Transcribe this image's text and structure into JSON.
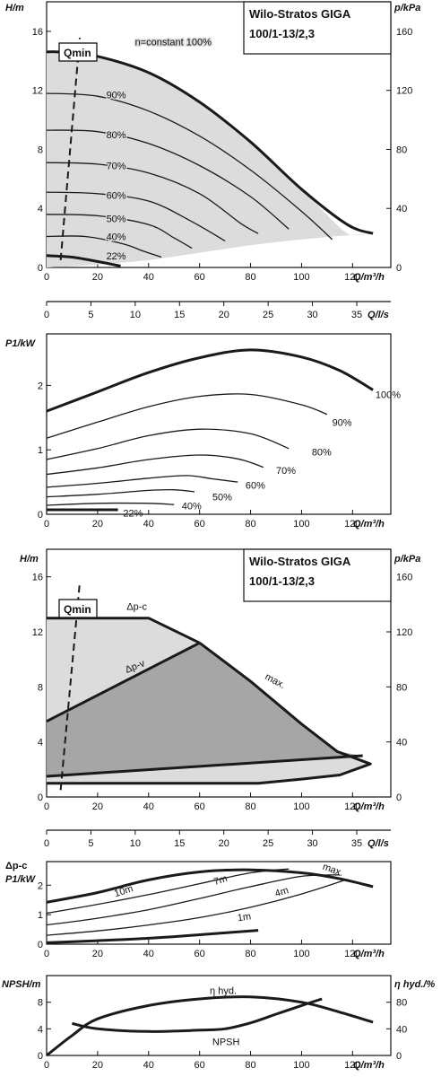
{
  "title_line1": "Wilo-Stratos GIGA",
  "title_line2": "100/1-13/2,3",
  "colors": {
    "line": "#1a1a1a",
    "fill_light": "#dcdcdc",
    "fill_dark": "#a6a6a6",
    "frame": "#111111"
  },
  "chart_data": [
    {
      "id": "hq_speed",
      "type": "line",
      "title": "Wilo-Stratos GIGA 100/1-13/2,3",
      "xlabel": "Q/m³/h",
      "ylabel": "H/m",
      "y2label": "p/kPa",
      "xlim": [
        0,
        135
      ],
      "ylim": [
        0,
        18
      ],
      "y2lim": [
        0,
        180
      ],
      "xticks": [
        "0",
        "20",
        "40",
        "60",
        "80",
        "100",
        "120"
      ],
      "yticks": [
        "0",
        "4",
        "8",
        "12",
        "16"
      ],
      "y2ticks": [
        "0",
        "40",
        "80",
        "120",
        "160"
      ],
      "qmin_label": "Qmin",
      "qmin_line": [
        [
          5.5,
          0.5
        ],
        [
          13,
          15.2
        ]
      ],
      "envelope": [
        [
          0,
          14.6
        ],
        [
          5,
          14.6
        ],
        [
          20,
          14.3
        ],
        [
          40,
          13.2
        ],
        [
          60,
          11.2
        ],
        [
          80,
          8.5
        ],
        [
          100,
          5.3
        ],
        [
          112,
          3.2
        ],
        [
          118,
          2.3
        ],
        [
          122,
          2.2
        ],
        [
          126,
          2.3
        ],
        [
          100,
          1.9
        ],
        [
          80,
          1.5
        ],
        [
          60,
          1.0
        ],
        [
          40,
          0.5
        ],
        [
          20,
          0.2
        ],
        [
          0,
          0
        ]
      ],
      "series": [
        {
          "name": "n=constant 100%",
          "bold": true,
          "x": [
            0,
            5,
            20,
            40,
            60,
            80,
            100,
            118,
            128
          ],
          "y": [
            14.6,
            14.6,
            14.3,
            13.2,
            11.2,
            8.5,
            5.3,
            2.9,
            2.3
          ]
        },
        {
          "name": "90%",
          "x": [
            0,
            20,
            40,
            60,
            80,
            100,
            112
          ],
          "y": [
            11.8,
            11.6,
            10.6,
            8.9,
            6.6,
            3.8,
            1.9
          ]
        },
        {
          "name": "80%",
          "x": [
            0,
            20,
            40,
            60,
            80,
            95
          ],
          "y": [
            9.3,
            9.2,
            8.4,
            6.9,
            4.8,
            2.6
          ]
        },
        {
          "name": "70%",
          "x": [
            0,
            20,
            40,
            60,
            76,
            83
          ],
          "y": [
            7.1,
            7.0,
            6.4,
            5.0,
            3.0,
            2.3
          ]
        },
        {
          "name": "60%",
          "x": [
            0,
            20,
            40,
            56,
            70
          ],
          "y": [
            5.1,
            5.0,
            4.5,
            3.2,
            1.8
          ]
        },
        {
          "name": "50%",
          "x": [
            0,
            20,
            40,
            50,
            57
          ],
          "y": [
            3.6,
            3.5,
            2.9,
            2.0,
            1.3
          ]
        },
        {
          "name": "40%",
          "x": [
            0,
            15,
            30,
            38,
            45
          ],
          "y": [
            2.1,
            2.1,
            1.6,
            1.1,
            0.7
          ]
        },
        {
          "name": "22%",
          "bold": true,
          "x": [
            0,
            10,
            20,
            29
          ],
          "y": [
            0.8,
            0.7,
            0.4,
            0.1
          ]
        }
      ],
      "curve_labels": [
        {
          "text": "n=constant 100%",
          "x": 22,
          "y": 15.3
        },
        {
          "text": "90%",
          "x": 22,
          "y": 11.7
        },
        {
          "text": "80%",
          "x": 22,
          "y": 9.0
        },
        {
          "text": "70%",
          "x": 22,
          "y": 6.9
        },
        {
          "text": "60%",
          "x": 22,
          "y": 4.9
        },
        {
          "text": "50%",
          "x": 22,
          "y": 3.3
        },
        {
          "text": "40%",
          "x": 22,
          "y": 2.1
        },
        {
          "text": "22%",
          "x": 22,
          "y": 0.8
        }
      ]
    },
    {
      "id": "ls_axis1",
      "type": "axis",
      "xlabel": "Q/l/s",
      "xlim": [
        0,
        37.5
      ],
      "xticks": [
        "0",
        "5",
        "10",
        "15",
        "20",
        "25",
        "30",
        "35"
      ]
    },
    {
      "id": "power",
      "type": "line",
      "xlabel": "Q/m³/h",
      "ylabel": "P1/kW",
      "xlim": [
        0,
        135
      ],
      "ylim": [
        0,
        2.8
      ],
      "xticks": [
        "0",
        "20",
        "40",
        "60",
        "80",
        "100",
        "120"
      ],
      "yticks": [
        "0",
        "1",
        "2"
      ],
      "series": [
        {
          "name": "100%",
          "bold": true,
          "x": [
            0,
            20,
            40,
            60,
            80,
            100,
            115,
            128
          ],
          "y": [
            1.6,
            1.9,
            2.2,
            2.43,
            2.55,
            2.44,
            2.23,
            1.93
          ]
        },
        {
          "name": "90%",
          "x": [
            0,
            20,
            40,
            60,
            80,
            100,
            110
          ],
          "y": [
            1.18,
            1.43,
            1.67,
            1.83,
            1.86,
            1.7,
            1.55
          ]
        },
        {
          "name": "80%",
          "x": [
            0,
            20,
            40,
            60,
            80,
            95
          ],
          "y": [
            0.85,
            1.02,
            1.22,
            1.32,
            1.25,
            1.02
          ]
        },
        {
          "name": "70%",
          "x": [
            0,
            20,
            40,
            60,
            75,
            85
          ],
          "y": [
            0.62,
            0.72,
            0.85,
            0.92,
            0.86,
            0.73
          ]
        },
        {
          "name": "60%",
          "x": [
            0,
            20,
            40,
            55,
            65,
            75
          ],
          "y": [
            0.42,
            0.48,
            0.56,
            0.6,
            0.55,
            0.5
          ]
        },
        {
          "name": "50%",
          "x": [
            0,
            20,
            40,
            50,
            58
          ],
          "y": [
            0.27,
            0.31,
            0.37,
            0.38,
            0.35
          ]
        },
        {
          "name": "40%",
          "x": [
            0,
            20,
            40,
            50
          ],
          "y": [
            0.14,
            0.17,
            0.17,
            0.15
          ]
        },
        {
          "name": "22%",
          "bold": true,
          "x": [
            0,
            10,
            20,
            28
          ],
          "y": [
            0.07,
            0.07,
            0.07,
            0.07
          ]
        }
      ],
      "curve_labels": [
        {
          "text": "100%",
          "x": 129,
          "y": 1.86
        },
        {
          "text": "90%",
          "x": 112,
          "y": 1.43
        },
        {
          "text": "80%",
          "x": 104,
          "y": 0.97
        },
        {
          "text": "70%",
          "x": 90,
          "y": 0.68
        },
        {
          "text": "60%",
          "x": 78,
          "y": 0.45
        },
        {
          "text": "50%",
          "x": 65,
          "y": 0.27
        },
        {
          "text": "40%",
          "x": 53,
          "y": 0.13
        },
        {
          "text": "22%",
          "x": 30,
          "y": 0.02
        }
      ]
    },
    {
      "id": "hq_control",
      "type": "area",
      "title": "Wilo-Stratos GIGA 100/1-13/2,3",
      "xlabel": "Q/m³/h",
      "ylabel": "H/m",
      "y2label": "p/kPa",
      "xlim": [
        0,
        135
      ],
      "ylim": [
        0,
        18
      ],
      "y2lim": [
        0,
        180
      ],
      "xticks": [
        "0",
        "20",
        "40",
        "60",
        "80",
        "100",
        "120"
      ],
      "yticks": [
        "0",
        "4",
        "8",
        "12",
        "16"
      ],
      "y2ticks": [
        "0",
        "40",
        "80",
        "120",
        "160"
      ],
      "qmin_label": "Qmin",
      "qmin_line": [
        [
          5.5,
          0.5
        ],
        [
          13,
          15.2
        ]
      ],
      "light_region": [
        [
          0,
          13
        ],
        [
          40,
          13
        ],
        [
          60,
          11.2
        ],
        [
          80,
          8.4
        ],
        [
          100,
          5.3
        ],
        [
          114,
          3.3
        ],
        [
          127,
          2.4
        ],
        [
          115,
          1.6
        ],
        [
          100,
          1.3
        ],
        [
          83,
          1
        ],
        [
          0,
          1
        ]
      ],
      "dark_region": [
        [
          0,
          5.5
        ],
        [
          60,
          11.2
        ],
        [
          80,
          8.4
        ],
        [
          100,
          5.3
        ],
        [
          114,
          3.3
        ],
        [
          124,
          3.0
        ],
        [
          0,
          1.5
        ]
      ],
      "bold_lines": [
        [
          [
            0,
            13
          ],
          [
            40,
            13
          ],
          [
            60,
            11.2
          ]
        ],
        [
          [
            0,
            5.5
          ],
          [
            60,
            11.2
          ]
        ],
        [
          [
            60,
            11.2
          ],
          [
            80,
            8.4
          ],
          [
            100,
            5.3
          ],
          [
            114,
            3.3
          ],
          [
            127,
            2.4
          ],
          [
            115,
            1.6
          ],
          [
            100,
            1.3
          ],
          [
            83,
            1
          ],
          [
            0,
            1
          ]
        ],
        [
          [
            0,
            1.5
          ],
          [
            124,
            3.0
          ]
        ]
      ],
      "labels": [
        {
          "text": "Δp-c",
          "x": 30,
          "y": 13.6,
          "rot": 0
        },
        {
          "text": "Δp-v",
          "x": 30,
          "y": 9.0,
          "rot": -22
        },
        {
          "text": "max.",
          "x": 84,
          "y": 8.6,
          "rot": 28
        }
      ]
    },
    {
      "id": "ls_axis2",
      "type": "axis",
      "xlabel": "Q/l/s",
      "xlim": [
        0,
        37.5
      ],
      "xticks": [
        "0",
        "5",
        "10",
        "15",
        "20",
        "25",
        "30",
        "35"
      ]
    },
    {
      "id": "power_control",
      "type": "line",
      "xlabel": "Q/m³/h",
      "ylabel": "P1/kW",
      "ylabel_top": "Δp-c",
      "xlim": [
        0,
        135
      ],
      "ylim": [
        0,
        2.8
      ],
      "xticks": [
        "0",
        "20",
        "40",
        "60",
        "80",
        "100",
        "120"
      ],
      "yticks": [
        "0",
        "1",
        "2"
      ],
      "series": [
        {
          "name": "max.",
          "bold": true,
          "x": [
            0,
            20,
            40,
            60,
            80,
            100,
            115,
            128
          ],
          "y": [
            1.42,
            1.75,
            2.18,
            2.45,
            2.52,
            2.42,
            2.22,
            1.95
          ]
        },
        {
          "name": "10m",
          "x": [
            0,
            20,
            40,
            60,
            80,
            95
          ],
          "y": [
            1.05,
            1.35,
            1.68,
            2.05,
            2.42,
            2.55
          ]
        },
        {
          "name": "7m",
          "x": [
            0,
            20,
            40,
            60,
            80,
            100,
            115
          ],
          "y": [
            0.65,
            0.88,
            1.17,
            1.55,
            1.95,
            2.3,
            2.35
          ]
        },
        {
          "name": "4m",
          "x": [
            0,
            20,
            40,
            60,
            80,
            100,
            118
          ],
          "y": [
            0.3,
            0.45,
            0.65,
            0.9,
            1.25,
            1.7,
            2.2
          ]
        },
        {
          "name": "1m",
          "bold": true,
          "x": [
            0,
            20,
            40,
            60,
            83
          ],
          "y": [
            0.05,
            0.12,
            0.2,
            0.32,
            0.47
          ]
        }
      ],
      "curve_labels": [
        {
          "text": "max.",
          "x": 108,
          "y": 2.55,
          "rot": 20
        },
        {
          "text": "10m",
          "x": 27,
          "y": 1.6,
          "rot": -18
        },
        {
          "text": "7m",
          "x": 66,
          "y": 2.0,
          "rot": -18
        },
        {
          "text": "4m",
          "x": 90,
          "y": 1.6,
          "rot": -18
        },
        {
          "text": "1m",
          "x": 75,
          "y": 0.78,
          "rot": -8
        }
      ]
    },
    {
      "id": "npsh_eff",
      "type": "line",
      "xlabel": "Q/m³/h",
      "ylabel": "NPSH/m",
      "y2label": "η hyd./%",
      "xlim": [
        0,
        135
      ],
      "ylim": [
        0,
        12
      ],
      "y2lim": [
        0,
        120
      ],
      "xticks": [
        "0",
        "20",
        "40",
        "60",
        "80",
        "100",
        "120"
      ],
      "yticks": [
        "0",
        "4",
        "8"
      ],
      "y2ticks": [
        "0",
        "40",
        "80"
      ],
      "series": [
        {
          "name": "η hyd.",
          "axis": "y2",
          "x": [
            0,
            10,
            20,
            40,
            60,
            80,
            100,
            115,
            128
          ],
          "y2": [
            0,
            30,
            55,
            75,
            85,
            88,
            80,
            65,
            50
          ]
        },
        {
          "name": "NPSH",
          "axis": "y1",
          "x": [
            10,
            20,
            40,
            60,
            70,
            80,
            90,
            100,
            108
          ],
          "y": [
            4.8,
            4.0,
            3.6,
            3.8,
            4.0,
            4.9,
            6.2,
            7.5,
            8.5
          ]
        }
      ],
      "curve_labels": [
        {
          "text": "η hyd.",
          "x": 64,
          "y": 9.8
        },
        {
          "text": "NPSH",
          "x": 65,
          "y": 2.1
        }
      ]
    }
  ]
}
